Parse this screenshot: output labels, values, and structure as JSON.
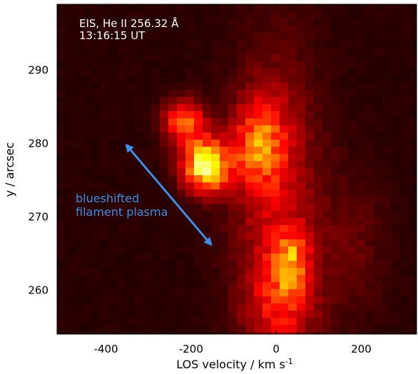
{
  "chart_data": {
    "type": "heatmap",
    "colormap": "hot",
    "title_lines": [
      "EIS, He II 256.32 Å",
      "13:16:15 UT"
    ],
    "xlabel_main": "LOS velocity / km s",
    "xlabel_sup": "-1",
    "ylabel": "y / arcsec",
    "xlim": [
      -515,
      330
    ],
    "ylim": [
      254,
      299
    ],
    "x_ticks": [
      {
        "value": -400,
        "label": "-400"
      },
      {
        "value": -200,
        "label": "-200"
      },
      {
        "value": 0,
        "label": "0"
      },
      {
        "value": 200,
        "label": "200"
      }
    ],
    "y_ticks": [
      {
        "value": 260,
        "label": "260"
      },
      {
        "value": 270,
        "label": "270"
      },
      {
        "value": 280,
        "label": "280"
      },
      {
        "value": 290,
        "label": "290"
      }
    ],
    "x_minor_step": 50,
    "y_minor_step": 2,
    "grid": false,
    "annotation": {
      "lines": [
        "blueshifted",
        "filament plasma"
      ],
      "color": "#3d8ee8",
      "arrow_from": [
        -355,
        280
      ],
      "arrow_to": [
        -150,
        266
      ]
    },
    "intensity_blobs": [
      {
        "x": -165,
        "y": 277,
        "sx": 38,
        "sy": 2.4,
        "amp": 0.78
      },
      {
        "x": -215,
        "y": 283,
        "sx": 35,
        "sy": 2.0,
        "amp": 0.42
      },
      {
        "x": -40,
        "y": 280,
        "sx": 40,
        "sy": 4.0,
        "amp": 0.4
      },
      {
        "x": 35,
        "y": 264,
        "sx": 30,
        "sy": 3.0,
        "amp": 0.38
      },
      {
        "x": 0,
        "y": 272,
        "sx": 70,
        "sy": 14,
        "amp": 0.22
      },
      {
        "x": 10,
        "y": 258,
        "sx": 55,
        "sy": 4.0,
        "amp": 0.22
      },
      {
        "x": 180,
        "y": 266,
        "sx": 55,
        "sy": 7.0,
        "amp": 0.08
      }
    ],
    "background_level": 0.06
  }
}
